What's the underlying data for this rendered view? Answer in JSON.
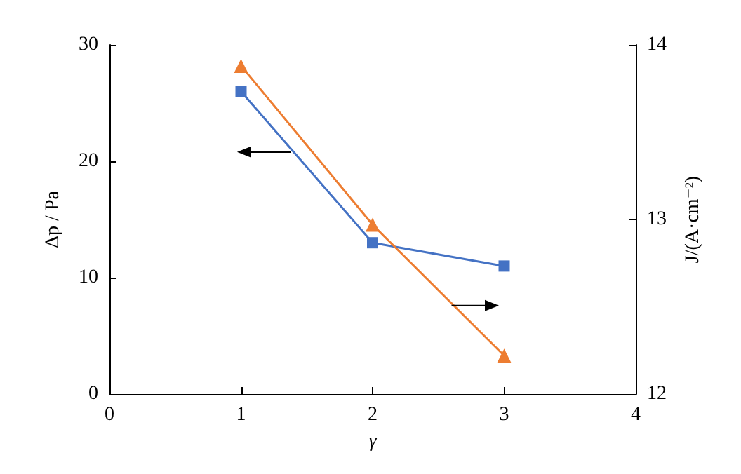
{
  "chart_data": {
    "type": "line",
    "xlabel": "γ",
    "ylabel": "Δp / Pa",
    "y2label": "J/(A·cm⁻²)",
    "x": [
      1,
      2,
      3
    ],
    "series": [
      {
        "color": "#4472c4",
        "values": [
          26,
          13,
          11
        ],
        "marker": "square"
      },
      {
        "color": "#ed7d31",
        "values": [
          13.88,
          12.97,
          12.22
        ],
        "marker": "triangle",
        "axis": "y2"
      }
    ],
    "xlim": [
      0,
      4
    ],
    "xticks": [
      0,
      1,
      2,
      3,
      4
    ],
    "ylim": [
      0,
      30
    ],
    "yticks": [
      0,
      10,
      20,
      30
    ],
    "y2lim": [
      12,
      14
    ],
    "y2ticks": [
      12,
      13,
      14
    ],
    "grid": false,
    "line_style": "solid"
  }
}
